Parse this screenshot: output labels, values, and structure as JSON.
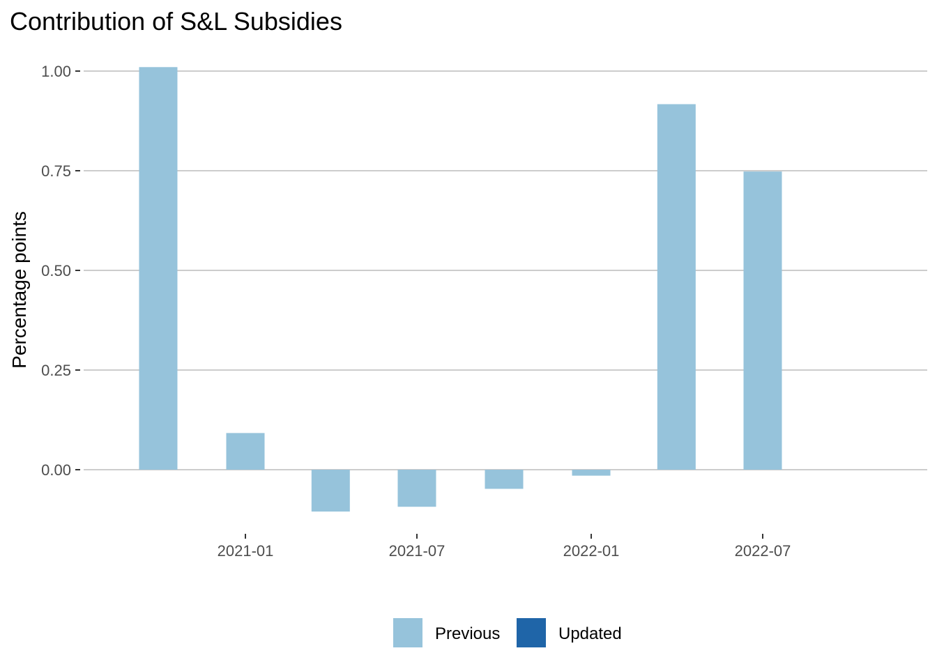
{
  "chart_data": {
    "type": "bar",
    "title": "Contribution of S&L Subsidies",
    "xlabel": "",
    "ylabel": "Percentage points",
    "ylim": [
      -0.12,
      1.02
    ],
    "y_ticks": [
      0.0,
      0.25,
      0.5,
      0.75,
      1.0
    ],
    "y_tick_labels": [
      "0.00",
      "0.25",
      "0.50",
      "0.75",
      "1.00"
    ],
    "x_ticks": [
      "2021-01",
      "2021-07",
      "2022-01",
      "2022-07"
    ],
    "x_tick_labels": [
      "2021-01",
      "2021-07",
      "2022-01",
      "2022-07"
    ],
    "x_range": [
      "2020-08-01",
      "2023-01-01"
    ],
    "grid": true,
    "legend_position": "bottom",
    "categories": [
      "2020-10",
      "2021-01",
      "2021-04",
      "2021-07",
      "2021-10",
      "2022-01",
      "2022-04",
      "2022-07"
    ],
    "category_dates": [
      "2020-10-01",
      "2021-01-01",
      "2021-04-01",
      "2021-07-01",
      "2021-10-01",
      "2022-01-01",
      "2022-04-01",
      "2022-07-01"
    ],
    "series": [
      {
        "name": "Previous",
        "color": "#96c3db",
        "values": [
          1.01,
          0.092,
          -0.105,
          -0.093,
          -0.048,
          -0.015,
          0.917,
          0.748
        ]
      },
      {
        "name": "Updated",
        "color": "#1f65a8",
        "values": [
          null,
          null,
          null,
          null,
          null,
          null,
          null,
          null
        ]
      }
    ]
  }
}
